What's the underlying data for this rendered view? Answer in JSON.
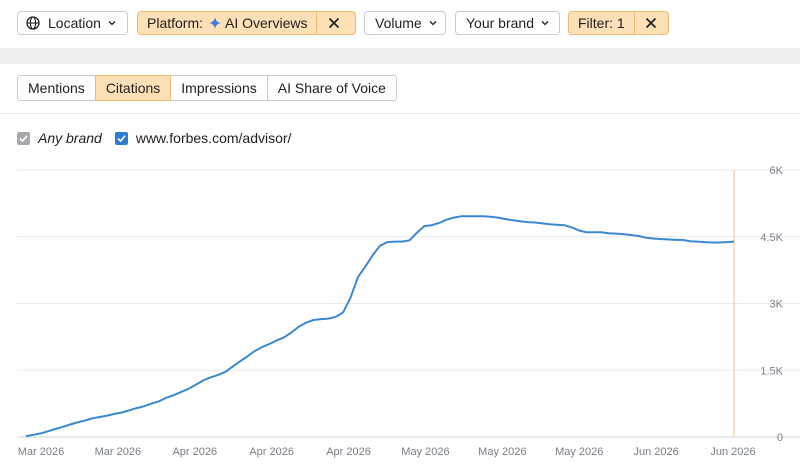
{
  "filters": {
    "location": "Location",
    "platform_prefix": "Platform:",
    "platform_value": "AI Overviews",
    "volume": "Volume",
    "your_brand": "Your brand",
    "filter_count": "Filter: 1"
  },
  "tabs": [
    "Mentions",
    "Citations",
    "Impressions",
    "AI Share of Voice"
  ],
  "selected_tab": "Citations",
  "legend": [
    {
      "label": "Any brand",
      "checked": true,
      "color": "#a7a9ad"
    },
    {
      "label": "www.forbes.com/advisor/",
      "checked": true,
      "color": "#2f7bd1"
    }
  ],
  "colors": {
    "accent": "#fde0b6",
    "accent_border": "#f2b870",
    "series": "#3a88d0",
    "cursor_line": "#f3c58a"
  },
  "chart_data": {
    "type": "line",
    "x_tick_labels": [
      "Mar 2026",
      "Mar 2026",
      "Apr 2026",
      "Apr 2026",
      "Apr 2026",
      "May 2026",
      "May 2026",
      "May 2026",
      "Jun 2026",
      "Jun 2026"
    ],
    "y_tick_labels": [
      "0",
      "1.5K",
      "3K",
      "4.5K",
      "6K"
    ],
    "ylim": [
      0,
      6000
    ],
    "grid": true,
    "series": [
      {
        "name": "www.forbes.com/advisor/",
        "x": [
          0,
          1,
          2,
          3,
          4,
          5,
          6,
          7,
          8,
          9,
          10,
          11,
          12,
          13,
          14,
          15,
          16,
          17,
          18,
          19,
          20,
          21,
          22,
          23,
          24,
          25,
          26,
          27,
          28,
          29,
          30,
          31,
          32,
          33,
          34,
          35,
          36,
          37,
          38,
          39,
          40,
          41,
          42,
          43,
          44,
          45,
          46,
          47,
          48,
          49,
          50,
          51,
          52,
          53,
          54,
          55,
          56,
          57,
          58,
          59,
          60,
          61,
          62,
          63,
          64,
          65,
          66,
          67,
          68,
          69,
          70,
          71,
          72,
          73,
          74,
          75,
          76,
          77,
          78,
          79,
          80,
          81,
          82,
          83,
          84,
          85,
          86,
          87,
          88,
          89,
          90,
          91,
          92,
          93,
          94,
          95,
          96
        ],
        "values": [
          20,
          50,
          80,
          130,
          180,
          230,
          280,
          330,
          370,
          420,
          450,
          480,
          520,
          550,
          600,
          650,
          690,
          750,
          800,
          880,
          940,
          1010,
          1080,
          1170,
          1270,
          1340,
          1390,
          1460,
          1580,
          1700,
          1810,
          1930,
          2020,
          2090,
          2170,
          2240,
          2350,
          2480,
          2570,
          2630,
          2650,
          2660,
          2700,
          2800,
          3130,
          3590,
          3830,
          4080,
          4300,
          4380,
          4390,
          4390,
          4420,
          4590,
          4740,
          4760,
          4810,
          4880,
          4930,
          4960,
          4960,
          4960,
          4960,
          4950,
          4930,
          4900,
          4870,
          4850,
          4830,
          4820,
          4800,
          4780,
          4770,
          4760,
          4710,
          4640,
          4600,
          4600,
          4600,
          4580,
          4570,
          4560,
          4540,
          4520,
          4480,
          4460,
          4450,
          4440,
          4430,
          4430,
          4400,
          4390,
          4380,
          4370,
          4370,
          4380,
          4390
        ]
      }
    ]
  }
}
